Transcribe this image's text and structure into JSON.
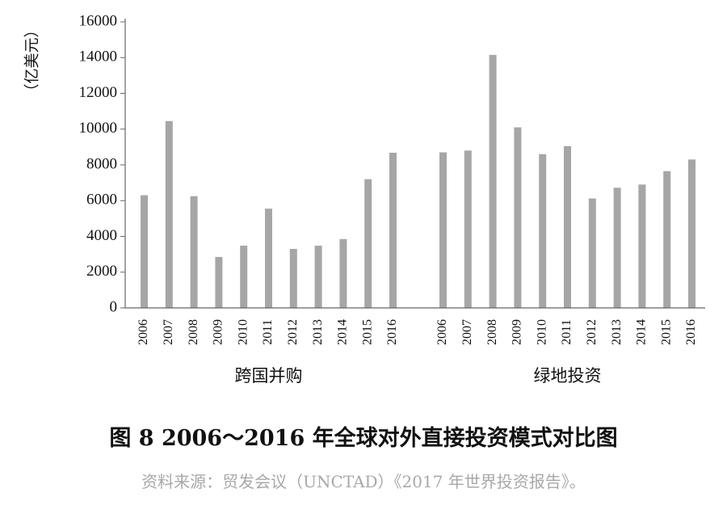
{
  "chart_data": {
    "type": "bar",
    "ylabel": "（亿美元）",
    "ylim": [
      0,
      16000
    ],
    "yticks": [
      "0",
      "2000",
      "4000",
      "6000",
      "8000",
      "10000",
      "12000",
      "14000",
      "16000"
    ],
    "grid": false,
    "bar_color": "#a6a6a6",
    "axis_color": "#666666",
    "groups": [
      {
        "name": "跨国并购",
        "categories": [
          "2006",
          "2007",
          "2008",
          "2009",
          "2010",
          "2011",
          "2012",
          "2013",
          "2014",
          "2015",
          "2016"
        ],
        "values": [
          6300,
          10450,
          6250,
          2850,
          3480,
          5550,
          3300,
          3480,
          3850,
          7200,
          8680
        ]
      },
      {
        "name": "绿地投资",
        "categories": [
          "2006",
          "2007",
          "2008",
          "2009",
          "2010",
          "2011",
          "2012",
          "2013",
          "2014",
          "2015",
          "2016"
        ],
        "values": [
          8700,
          8800,
          14150,
          10100,
          8600,
          9050,
          6120,
          6720,
          6900,
          7650,
          8300
        ]
      }
    ]
  },
  "figure": {
    "title": "图 8 2006～2016 年全球对外直接投资模式对比图",
    "source": "资料来源：贸发会议（UNCTAD）《2017 年世界投资报告》。"
  }
}
